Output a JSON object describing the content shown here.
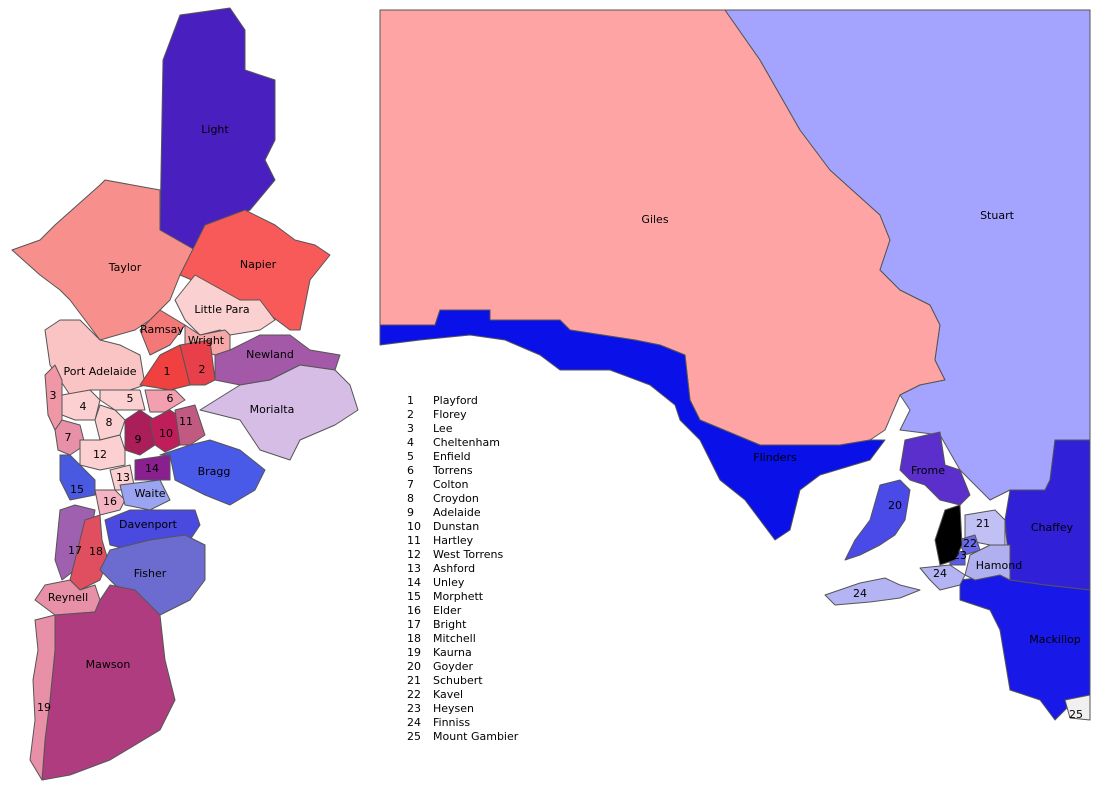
{
  "metro_map": {
    "regions": [
      {
        "label": "Light"
      },
      {
        "label": "Taylor"
      },
      {
        "label": "Napier"
      },
      {
        "label": "Little Para"
      },
      {
        "label": "Ramsay"
      },
      {
        "label": "Wright"
      },
      {
        "label": "Newland"
      },
      {
        "label": "Morialta"
      },
      {
        "label": "Port Adelaide"
      },
      {
        "label": "1"
      },
      {
        "label": "2"
      },
      {
        "label": "3"
      },
      {
        "label": "4"
      },
      {
        "label": "5"
      },
      {
        "label": "6"
      },
      {
        "label": "7"
      },
      {
        "label": "8"
      },
      {
        "label": "9"
      },
      {
        "label": "10"
      },
      {
        "label": "11"
      },
      {
        "label": "12"
      },
      {
        "label": "13"
      },
      {
        "label": "14"
      },
      {
        "label": "15"
      },
      {
        "label": "16"
      },
      {
        "label": "Waite"
      },
      {
        "label": "Bragg"
      },
      {
        "label": "Davenport"
      },
      {
        "label": "17"
      },
      {
        "label": "18"
      },
      {
        "label": "Fisher"
      },
      {
        "label": "Reynell"
      },
      {
        "label": "Mawson"
      },
      {
        "label": "19"
      }
    ]
  },
  "state_map": {
    "regions": [
      {
        "label": "Giles"
      },
      {
        "label": "Stuart"
      },
      {
        "label": "Flinders"
      },
      {
        "label": "Frome"
      },
      {
        "label": "Chaffey"
      },
      {
        "label": "Mackillop"
      },
      {
        "label": "Hamond"
      },
      {
        "label": "21"
      },
      {
        "label": "20"
      },
      {
        "label": "22"
      },
      {
        "label": "23"
      },
      {
        "label": "24"
      },
      {
        "label": "24"
      },
      {
        "label": "25"
      }
    ]
  },
  "legend": [
    {
      "number": 1,
      "name": "Playford"
    },
    {
      "number": 2,
      "name": "Florey"
    },
    {
      "number": 3,
      "name": "Lee"
    },
    {
      "number": 4,
      "name": "Cheltenham"
    },
    {
      "number": 5,
      "name": "Enfield"
    },
    {
      "number": 6,
      "name": "Torrens"
    },
    {
      "number": 7,
      "name": "Colton"
    },
    {
      "number": 8,
      "name": "Croydon"
    },
    {
      "number": 9,
      "name": "Adelaide"
    },
    {
      "number": 10,
      "name": "Dunstan"
    },
    {
      "number": 11,
      "name": "Hartley"
    },
    {
      "number": 12,
      "name": "West Torrens"
    },
    {
      "number": 13,
      "name": "Ashford"
    },
    {
      "number": 14,
      "name": "Unley"
    },
    {
      "number": 15,
      "name": "Morphett"
    },
    {
      "number": 16,
      "name": "Elder"
    },
    {
      "number": 17,
      "name": "Bright"
    },
    {
      "number": 18,
      "name": "Mitchell"
    },
    {
      "number": 19,
      "name": "Kaurna"
    },
    {
      "number": 20,
      "name": "Goyder"
    },
    {
      "number": 21,
      "name": "Schubert"
    },
    {
      "number": 22,
      "name": "Kavel"
    },
    {
      "number": 23,
      "name": "Heysen"
    },
    {
      "number": 24,
      "name": "Finniss"
    },
    {
      "number": 25,
      "name": "Mount Gambier"
    }
  ]
}
